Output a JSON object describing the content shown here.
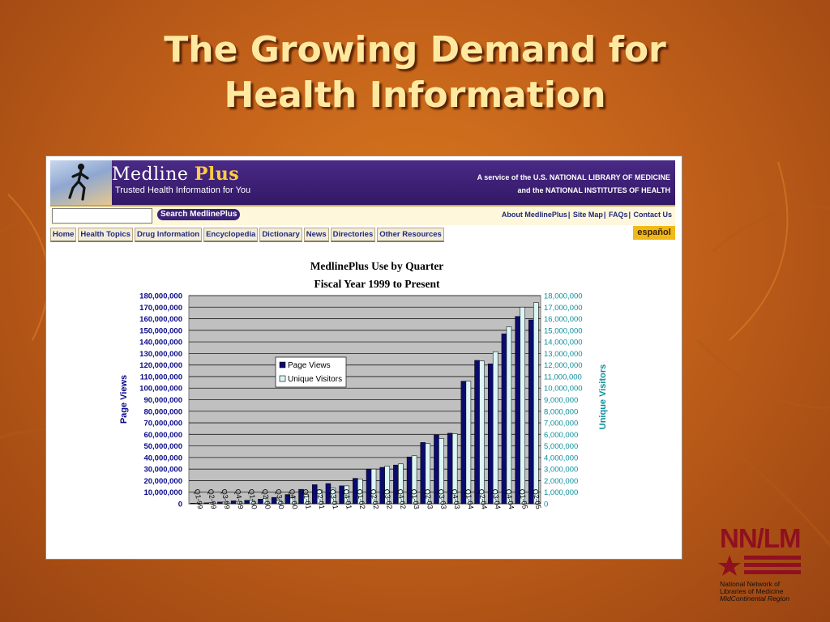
{
  "slide": {
    "title_lines": [
      "The Growing Demand for",
      "Health Information"
    ]
  },
  "medlineplus": {
    "logo_main": "Medline",
    "logo_plus": "Plus",
    "tagline": "Trusted Health Information for You",
    "service_line1": "A service of the U.S. NATIONAL LIBRARY OF MEDICINE",
    "service_line2": "and the NATIONAL INSTITUTES OF HEALTH",
    "search_button": "Search MedlinePlus",
    "search_value": "",
    "top_links": [
      "About MedlinePlus",
      "Site Map",
      "FAQs",
      "Contact Us"
    ],
    "nav_tabs": [
      "Home",
      "Health Topics",
      "Drug Information",
      "Encyclopedia",
      "Dictionary",
      "News",
      "Directories",
      "Other Resources"
    ],
    "espanol": "español"
  },
  "nnlm": {
    "mark": "NN/LM",
    "line1": "National Network of",
    "line2": "Libraries of Medicine",
    "line3": "MidContinental Region"
  },
  "colors": {
    "page_views": "#0b0b6e",
    "unique_visitors": "#dcf6f6",
    "left_axis_text": "#0a0a8a",
    "right_axis_text": "#0b8f9b",
    "plot_bg": "#c0c0c0",
    "nnlm_red": "#8f1020"
  },
  "chart_data": {
    "type": "bar",
    "title_lines": [
      "MedlinePlus Use by Quarter",
      "Fiscal Year 1999 to Present"
    ],
    "ylabel": "Page Views",
    "y2label": "Unique Visitors",
    "ylim": [
      0,
      180000000
    ],
    "y2lim": [
      0,
      18000000
    ],
    "ytick_labels": [
      "0",
      "10,000,000",
      "20,000,000",
      "30,000,000",
      "40,000,000",
      "50,000,000",
      "60,000,000",
      "70,000,000",
      "80,000,000",
      "90,000,000",
      "100,000,000",
      "110,000,000",
      "120,000,000",
      "130,000,000",
      "140,000,000",
      "150,000,000",
      "160,000,000",
      "170,000,000",
      "180,000,000"
    ],
    "y2tick_labels": [
      "0",
      "1,000,000",
      "2,000,000",
      "3,000,000",
      "4,000,000",
      "5,000,000",
      "6,000,000",
      "7,000,000",
      "8,000,000",
      "9,000,000",
      "10,000,000",
      "11,000,000",
      "12,000,000",
      "13,000,000",
      "14,000,000",
      "15,000,000",
      "16,000,000",
      "17,000,000",
      "18,000,000"
    ],
    "categories": [
      "Q1-99",
      "Q2-99",
      "Q3-99",
      "Q4-99",
      "Q1-00",
      "Q2-00",
      "Q3-00",
      "Q4-00",
      "Q1-01",
      "Q2-01",
      "Q3-01",
      "Q4-01",
      "Q1-02",
      "Q2-02",
      "Q3-02",
      "Q4-02",
      "Q1-03",
      "Q2-03",
      "Q3-03",
      "Q4-03",
      "Q1-04",
      "Q2-04",
      "Q3-04",
      "Q4-04",
      "Q1-05",
      "Q2-05"
    ],
    "series": [
      {
        "name": "Page Views",
        "axis": "left",
        "values": [
          500000,
          800000,
          1500000,
          2500000,
          3000000,
          4000000,
          5500000,
          8000000,
          12500000,
          16500000,
          17500000,
          15500000,
          22000000,
          30000000,
          31500000,
          33500000,
          40500000,
          53000000,
          59500000,
          61000000,
          106000000,
          124000000,
          121000000,
          147000000,
          162000000,
          159000000
        ]
      },
      {
        "name": "Unique Visitors",
        "axis": "right",
        "values": [
          50000,
          100000,
          150000,
          200000,
          300000,
          450000,
          300000,
          500000,
          800000,
          1200000,
          1350000,
          1550000,
          2150000,
          3000000,
          3250000,
          3450000,
          4150000,
          5200000,
          5650000,
          6050000,
          10600000,
          12350000,
          13150000,
          15300000,
          17000000,
          17400000
        ]
      }
    ],
    "legend_position": "upper-left of plot",
    "grid": true
  }
}
